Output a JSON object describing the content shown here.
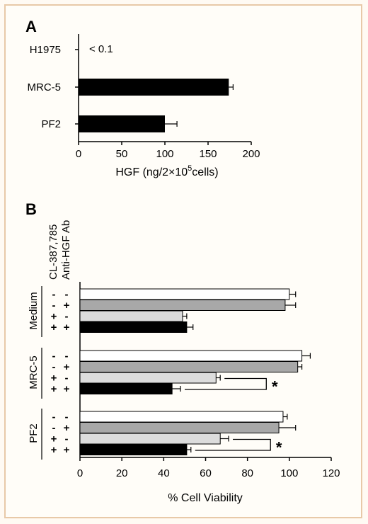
{
  "colors": {
    "black": "#000000",
    "gray": "#a8a8a8",
    "light": "#dcdcdc",
    "white": "#ffffff"
  },
  "chart_data": [
    {
      "panel": "A",
      "type": "bar",
      "orientation": "horizontal",
      "categories": [
        "H1975",
        "MRC-5",
        "PF2"
      ],
      "values": [
        0,
        174,
        100
      ],
      "errors": [
        0,
        5,
        14
      ],
      "annotations": [
        "< 0.1",
        "",
        ""
      ],
      "xlabel_prefix": "HGF (ng/2×10",
      "xlabel_sup": "5",
      "xlabel_suffix": "cells)",
      "xlim": [
        0,
        200
      ],
      "xticks": [
        "0",
        "50",
        "100",
        "150",
        "200"
      ]
    },
    {
      "panel": "B",
      "type": "bar",
      "orientation": "horizontal",
      "factor_labels": [
        "CL-387,785",
        "Anti-HGF Ab"
      ],
      "xlabel": "% Cell Viability",
      "xlim": [
        0,
        120
      ],
      "xticks": [
        "0",
        "20",
        "40",
        "60",
        "80",
        "100",
        "120"
      ],
      "groups": [
        {
          "name": "Medium",
          "bars": [
            {
              "cl": "-",
              "ab": "-",
              "value": 100,
              "error": 3,
              "color": "white"
            },
            {
              "cl": "-",
              "ab": "+",
              "value": 98,
              "error": 5,
              "color": "gray"
            },
            {
              "cl": "+",
              "ab": "-",
              "value": 49,
              "error": 2,
              "color": "light"
            },
            {
              "cl": "+",
              "ab": "+",
              "value": 51,
              "error": 3,
              "color": "black"
            }
          ],
          "significance": ""
        },
        {
          "name": "MRC-5",
          "bars": [
            {
              "cl": "-",
              "ab": "-",
              "value": 106,
              "error": 4,
              "color": "white"
            },
            {
              "cl": "-",
              "ab": "+",
              "value": 104,
              "error": 2,
              "color": "gray"
            },
            {
              "cl": "+",
              "ab": "-",
              "value": 65,
              "error": 2,
              "color": "light"
            },
            {
              "cl": "+",
              "ab": "+",
              "value": 44,
              "error": 4,
              "color": "black"
            }
          ],
          "significance": "*"
        },
        {
          "name": "PF2",
          "bars": [
            {
              "cl": "-",
              "ab": "-",
              "value": 97,
              "error": 2,
              "color": "white"
            },
            {
              "cl": "-",
              "ab": "+",
              "value": 95,
              "error": 8,
              "color": "gray"
            },
            {
              "cl": "+",
              "ab": "-",
              "value": 67,
              "error": 4,
              "color": "light"
            },
            {
              "cl": "+",
              "ab": "+",
              "value": 51,
              "error": 2,
              "color": "black"
            }
          ],
          "significance": "*"
        }
      ]
    }
  ]
}
